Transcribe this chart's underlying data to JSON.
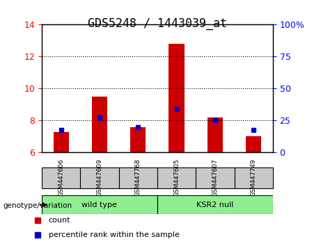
{
  "title": "GDS5248 / 1443039_at",
  "samples": [
    "GSM447606",
    "GSM447609",
    "GSM447768",
    "GSM447605",
    "GSM447607",
    "GSM447749"
  ],
  "red_bar_values": [
    7.3,
    9.5,
    7.6,
    12.8,
    8.2,
    7.0
  ],
  "blue_square_values": [
    7.4,
    8.2,
    7.6,
    8.7,
    8.0,
    7.4
  ],
  "ylim_left": [
    6,
    14
  ],
  "ylim_right": [
    0,
    100
  ],
  "yticks_left": [
    6,
    8,
    10,
    12,
    14
  ],
  "yticks_right": [
    0,
    25,
    50,
    75,
    100
  ],
  "ytick_labels_right": [
    "0",
    "25",
    "50",
    "75",
    "100%"
  ],
  "groups": [
    {
      "label": "wild type",
      "indices": [
        0,
        1,
        2
      ],
      "color": "#90ee90"
    },
    {
      "label": "KSR2 null",
      "indices": [
        3,
        4,
        5
      ],
      "color": "#90ee90"
    }
  ],
  "group_bg_color": "#c8c8c8",
  "group_label_bg_wild": "#90ee90",
  "group_label_bg_ksr2": "#90ee90",
  "bar_color": "#cc0000",
  "square_color": "#0000cc",
  "bar_width": 0.4,
  "genotype_label": "genotype/variation",
  "legend_count_label": "count",
  "legend_percentile_label": "percentile rank within the sample",
  "title_fontsize": 12,
  "axis_label_fontsize": 9,
  "tick_fontsize": 9,
  "background_color": "#ffffff",
  "plot_bg_color": "#ffffff",
  "grid_color": "#000000",
  "grid_linestyle": "dotted"
}
